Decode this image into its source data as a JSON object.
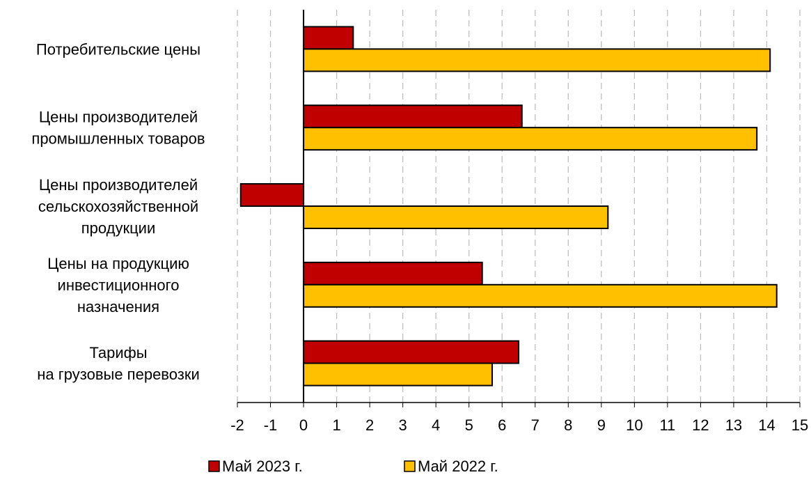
{
  "chart_data": {
    "type": "bar",
    "orientation": "horizontal",
    "title": "",
    "xlabel": "",
    "ylabel": "",
    "xlim": [
      -2,
      15
    ],
    "x_ticks": [
      -2,
      -1,
      0,
      1,
      2,
      3,
      4,
      5,
      6,
      7,
      8,
      9,
      10,
      11,
      12,
      13,
      14,
      15
    ],
    "grid": "vertical-dashed",
    "legend_position": "bottom",
    "categories": [
      [
        "Потребительские цены"
      ],
      [
        "Цены производителей",
        "промышленных товаров"
      ],
      [
        "Цены производителей",
        "сельскохозяйственной",
        "продукции"
      ],
      [
        "Цены на продукцию",
        "инвестиционного",
        "назначения"
      ],
      [
        "Тарифы",
        "на грузовые перевозки"
      ]
    ],
    "series": [
      {
        "name": "Май 2023 г.",
        "color": "#C00000",
        "values": [
          1.5,
          6.6,
          -1.9,
          5.4,
          6.5
        ]
      },
      {
        "name": "Май 2022 г.",
        "color": "#FFC000",
        "values": [
          14.1,
          13.7,
          9.2,
          14.3,
          5.7
        ]
      }
    ]
  }
}
